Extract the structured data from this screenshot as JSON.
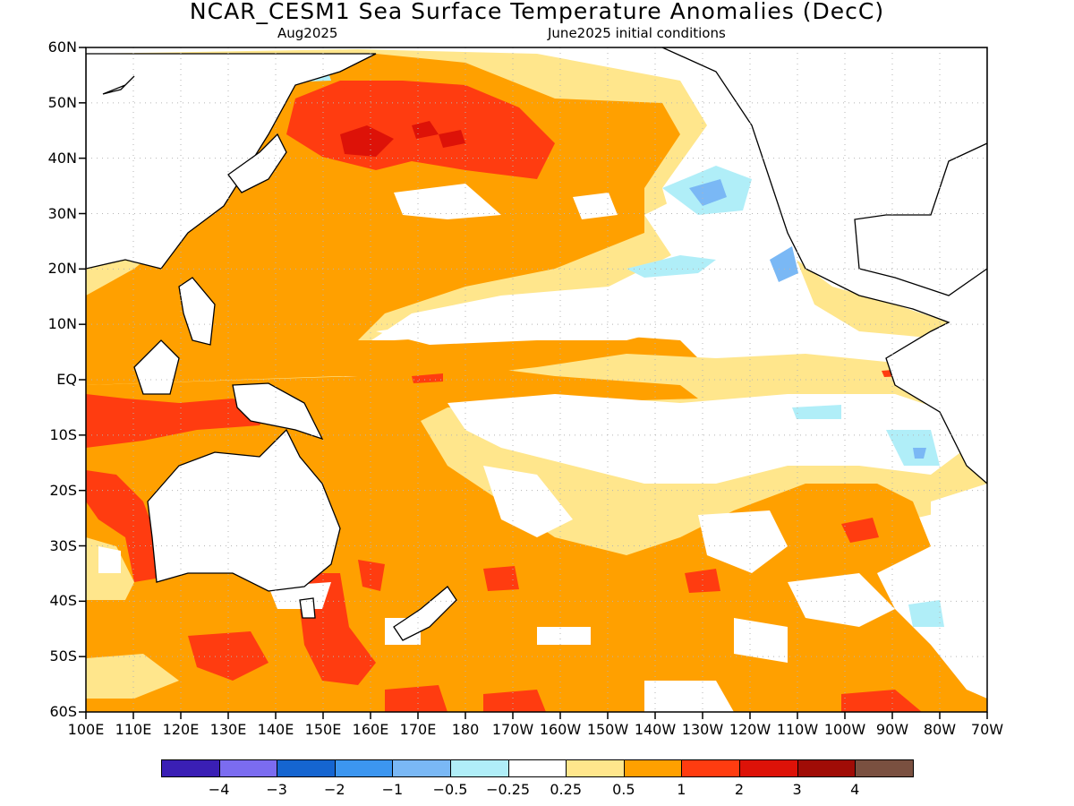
{
  "title": "NCAR_CESM1 Sea Surface Temperature Anomalies (DecC)",
  "subtitle_left": "Aug2025",
  "subtitle_right": "June2025 initial conditions",
  "lat_labels": [
    "60N",
    "50N",
    "40N",
    "30N",
    "20N",
    "10N",
    "EQ",
    "10S",
    "20S",
    "30S",
    "40S",
    "50S",
    "60S"
  ],
  "lon_labels": [
    "100E",
    "110E",
    "120E",
    "130E",
    "140E",
    "150E",
    "160E",
    "170E",
    "180",
    "170W",
    "160W",
    "150W",
    "140W",
    "130W",
    "120W",
    "110W",
    "100W",
    "90W",
    "80W",
    "70W"
  ],
  "colorbar": {
    "colors": [
      "#3a1fb5",
      "#7b6cf0",
      "#1565d0",
      "#3c96f0",
      "#7ab8f5",
      "#b0eef8",
      "#ffffff",
      "#ffe68c",
      "#ffa000",
      "#ff3c10",
      "#dd1208",
      "#a00c06",
      "#7a5040"
    ],
    "labels": [
      "−4",
      "−3",
      "−2",
      "−1",
      "−0.5",
      "−0.25",
      "0.25",
      "0.5",
      "1",
      "2",
      "3",
      "4"
    ]
  }
}
